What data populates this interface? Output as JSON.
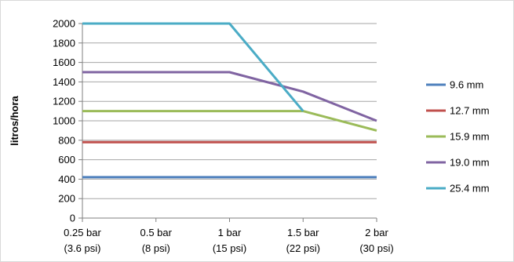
{
  "chart_data": {
    "type": "line",
    "title": "",
    "xlabel": "",
    "ylabel": "litros/hora",
    "categories": [
      [
        "0.25 bar",
        "(3.6 psi)"
      ],
      [
        "0.5 bar",
        "(8 psi)"
      ],
      [
        "1 bar",
        "(15 psi)"
      ],
      [
        "1.5 bar",
        "(22 psi)"
      ],
      [
        "2 bar",
        "(30 psi)"
      ]
    ],
    "ylim": [
      0,
      2000
    ],
    "yticks": [
      0,
      200,
      400,
      600,
      800,
      1000,
      1200,
      1400,
      1600,
      1800,
      2000
    ],
    "grid": true,
    "legend_position": "right",
    "series": [
      {
        "name": "9.6 mm",
        "color": "#4f81bd",
        "values": [
          420,
          420,
          420,
          420,
          420
        ]
      },
      {
        "name": "12.7 mm",
        "color": "#c0504d",
        "values": [
          780,
          780,
          780,
          780,
          780
        ]
      },
      {
        "name": "15.9 mm",
        "color": "#9bbb59",
        "values": [
          1100,
          1100,
          1100,
          1100,
          900
        ]
      },
      {
        "name": "19.0 mm",
        "color": "#8064a2",
        "values": [
          1500,
          1500,
          1500,
          1300,
          1000
        ]
      },
      {
        "name": "25.4 mm",
        "color": "#4bacc6",
        "values": [
          2000,
          2000,
          2000,
          1100,
          null
        ]
      }
    ]
  }
}
